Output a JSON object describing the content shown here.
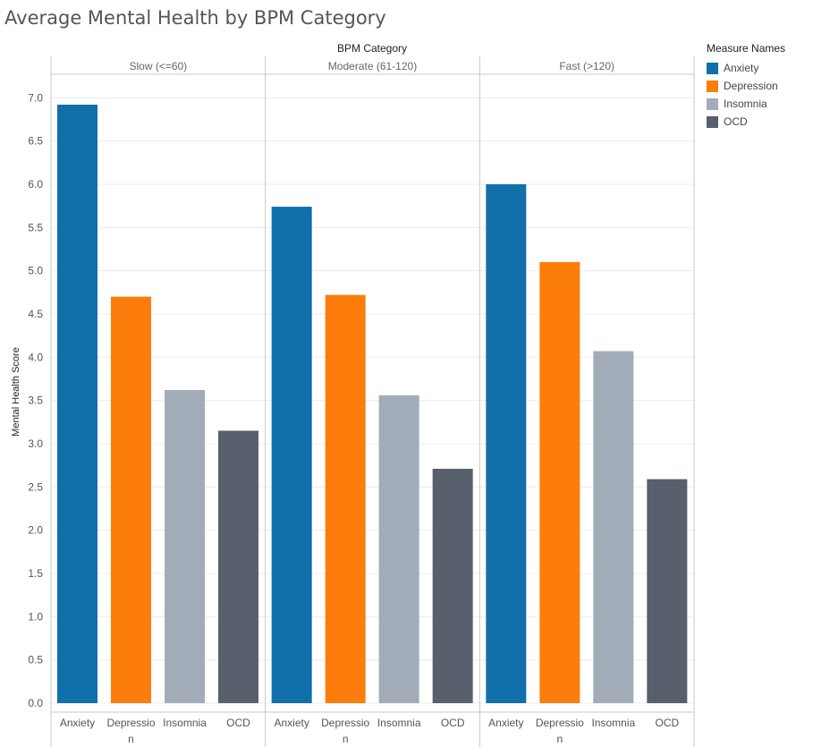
{
  "title": "Average Mental Health by BPM Category",
  "legend": {
    "title": "Measure Names",
    "items": [
      {
        "label": "Anxiety",
        "color": "#1170aa"
      },
      {
        "label": "Depression",
        "color": "#fc7d0b"
      },
      {
        "label": "Insomnia",
        "color": "#a3acb9"
      },
      {
        "label": "OCD",
        "color": "#57606c"
      }
    ]
  },
  "chart_data": {
    "type": "bar",
    "column_header": "BPM Category",
    "ylabel": "Mental Health Score",
    "ylim": [
      0,
      7.4
    ],
    "yticks": [
      "0.0",
      "0.5",
      "1.0",
      "1.5",
      "2.0",
      "2.5",
      "3.0",
      "3.5",
      "4.0",
      "4.5",
      "5.0",
      "5.5",
      "6.0",
      "6.5",
      "7.0"
    ],
    "grid": true,
    "legend_position": "top-right",
    "categories": [
      "Anxiety",
      "Depression",
      "Insomnia",
      "OCD"
    ],
    "category_tick_labels": [
      [
        "Anxiety"
      ],
      [
        "Depressio",
        "n"
      ],
      [
        "Insomnia"
      ],
      [
        "OCD"
      ]
    ],
    "panels": [
      {
        "name": "Slow (<=60)",
        "values": [
          6.92,
          4.7,
          3.62,
          3.15
        ]
      },
      {
        "name": "Moderate (61-120)",
        "values": [
          5.74,
          4.72,
          3.56,
          2.71
        ]
      },
      {
        "name": "Fast (>120)",
        "values": [
          6.0,
          5.1,
          4.07,
          2.59
        ]
      }
    ]
  }
}
